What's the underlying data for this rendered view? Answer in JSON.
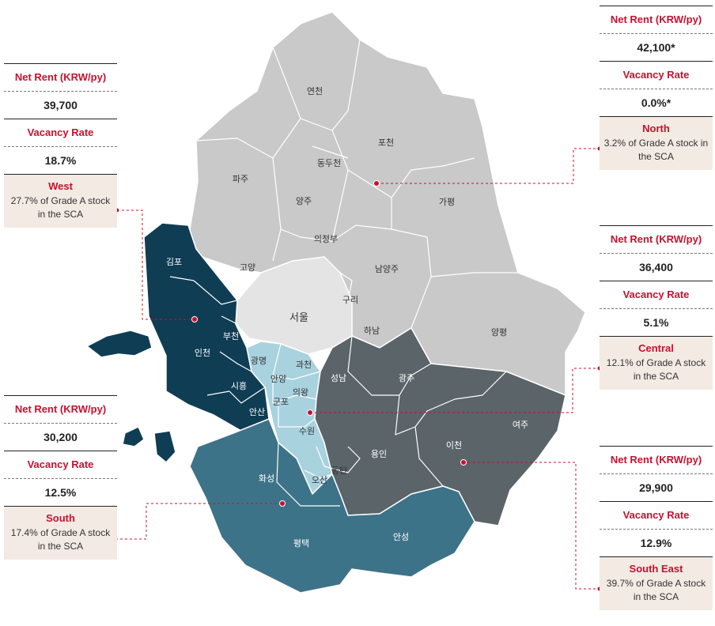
{
  "colors": {
    "north": "#c9c9c9",
    "seoul": "#e4e4e4",
    "west": "#0f3d54",
    "central": "#a9d2df",
    "south": "#3d7388",
    "south_east": "#5a6469",
    "accent": "#c8102e",
    "box_bg": "#f3eae3"
  },
  "map_labels": {
    "yeoncheon": "연천",
    "pocheon": "포천",
    "dongducheon": "동두천",
    "paju": "파주",
    "yangju": "양주",
    "gapyeong": "가평",
    "uijeongbu": "의정부",
    "goyang": "고양",
    "namyangju": "남양주",
    "guri": "구리",
    "seoul": "서울",
    "hanam": "하남",
    "yangpyeong": "양평",
    "gimpo": "김포",
    "incheon": "인천",
    "bucheon": "부천",
    "gwangmyeong": "광명",
    "gwacheon": "과천",
    "anyang": "안양",
    "uiwang": "의왕",
    "gunpo": "군포",
    "siheung": "시흥",
    "ansan": "안산",
    "seongnam": "성남",
    "gwangju": "광주",
    "suwon": "수원",
    "yeoju": "여주",
    "icheon": "이천",
    "yongin": "용인",
    "hwaseong": "화성",
    "dongtan": "동탄",
    "osan": "오산",
    "pyeongtaek": "평택",
    "anseong": "안성"
  },
  "markets": {
    "north": {
      "rent_label": "Net Rent (KRW/py)",
      "rent": "42,100*",
      "vacancy_label": "Vacancy Rate",
      "vacancy": "0.0%*",
      "name": "North",
      "share": "3.2% of Grade A stock in the SCA"
    },
    "west": {
      "rent_label": "Net Rent (KRW/py)",
      "rent": "39,700",
      "vacancy_label": "Vacancy Rate",
      "vacancy": "18.7%",
      "name": "West",
      "share": "27.7% of Grade A stock in the SCA"
    },
    "central": {
      "rent_label": "Net Rent (KRW/py)",
      "rent": "36,400",
      "vacancy_label": "Vacancy Rate",
      "vacancy": "5.1%",
      "name": "Central",
      "share": "12.1% of Grade A stock in the SCA"
    },
    "south": {
      "rent_label": "Net Rent (KRW/py)",
      "rent": "30,200",
      "vacancy_label": "Vacancy Rate",
      "vacancy": "12.5%",
      "name": "South",
      "share": "17.4% of Grade A stock in the SCA"
    },
    "south_east": {
      "rent_label": "Net Rent (KRW/py)",
      "rent": "29,900",
      "vacancy_label": "Vacancy Rate",
      "vacancy": "12.9%",
      "name": "South East",
      "share": "39.7% of Grade A stock in the SCA"
    }
  }
}
